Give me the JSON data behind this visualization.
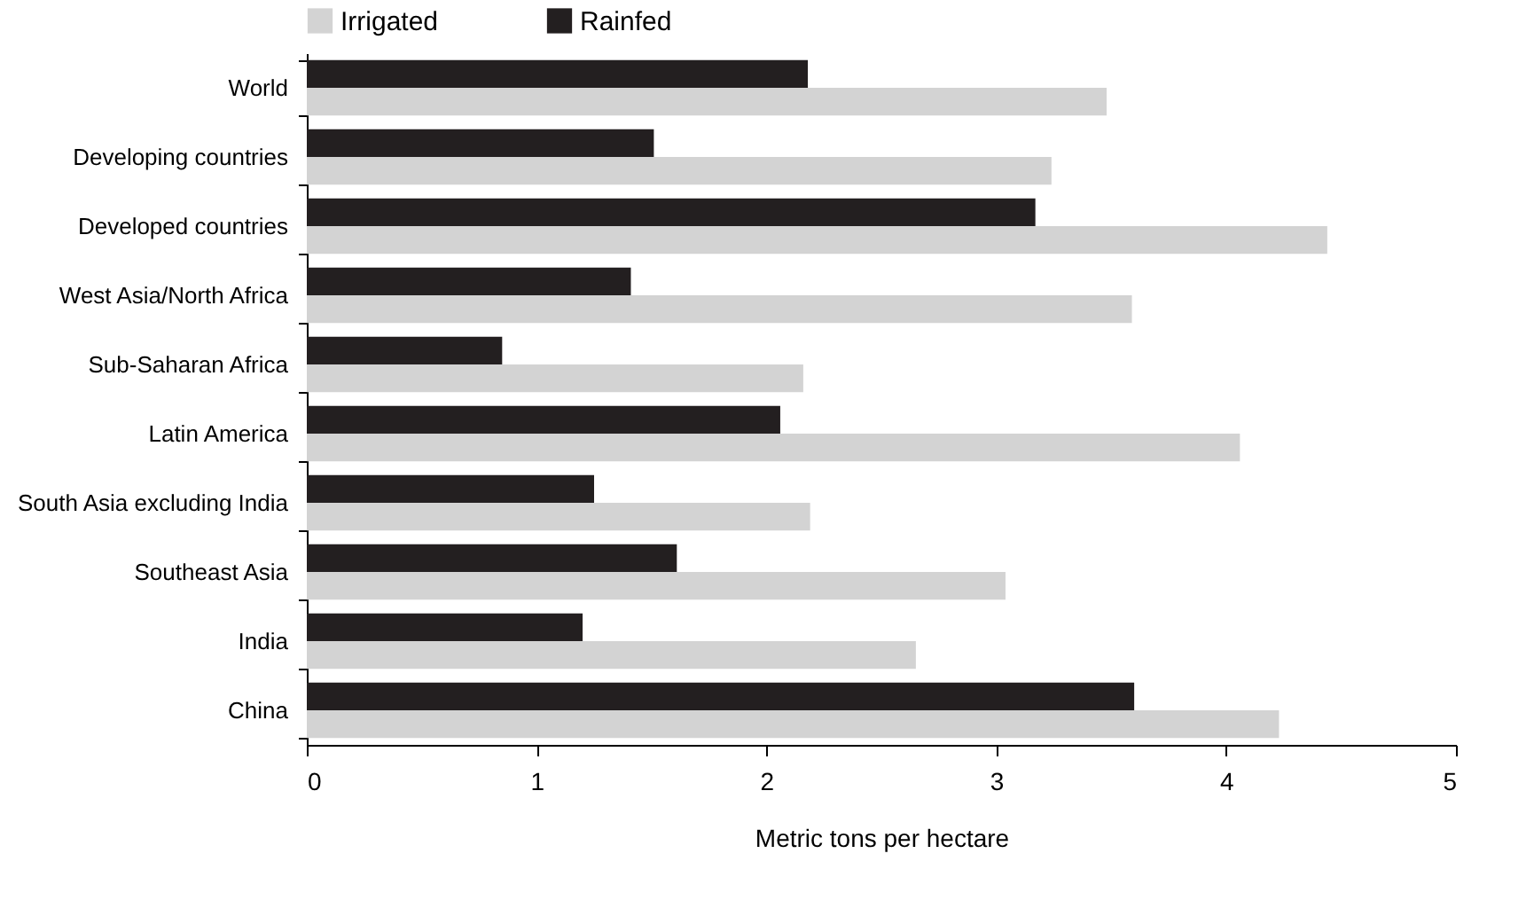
{
  "chart_data": {
    "type": "bar",
    "orientation": "horizontal",
    "xlabel": "Metric tons per hectare",
    "categories": [
      "World",
      "Developing countries",
      "Developed countries",
      "West Asia/North Africa",
      "Sub-Saharan Africa",
      "Latin America",
      "South Asia excluding India",
      "Southeast Asia",
      "India",
      "China"
    ],
    "series": [
      {
        "name": "Irrigated",
        "color": "#d3d3d3",
        "values": [
          3.48,
          3.24,
          4.44,
          3.59,
          2.16,
          4.06,
          2.19,
          3.04,
          2.65,
          4.23
        ]
      },
      {
        "name": "Rainfed",
        "color": "#231f20",
        "values": [
          2.18,
          1.51,
          3.17,
          1.41,
          0.85,
          2.06,
          1.25,
          1.61,
          1.2,
          3.6
        ]
      }
    ],
    "xlim": [
      0,
      5
    ],
    "xticks": [
      0,
      1,
      2,
      3,
      4,
      5
    ],
    "legend": "top",
    "grid": false
  }
}
